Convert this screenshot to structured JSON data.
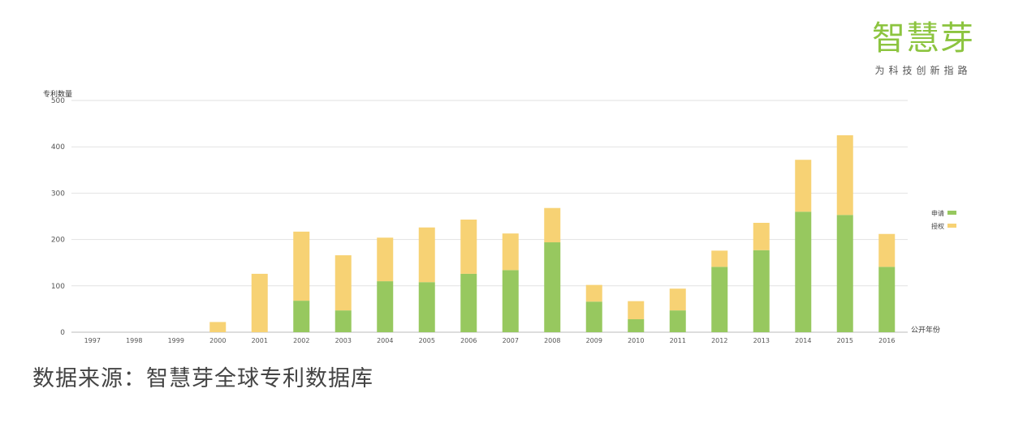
{
  "logo": {
    "name": "智慧芽",
    "tagline": "为科技创新指路"
  },
  "source_text": "数据来源：智慧芽全球专利数据库",
  "chart_data": {
    "type": "bar",
    "stacked": true,
    "ylabel": "专利数量",
    "xlabel": "公开年份",
    "ylim": [
      0,
      500
    ],
    "yticks": [
      0,
      100,
      200,
      300,
      400,
      500
    ],
    "grid": true,
    "legend_position": "right",
    "categories": [
      "1997",
      "1998",
      "1999",
      "2000",
      "2001",
      "2002",
      "2003",
      "2004",
      "2005",
      "2006",
      "2007",
      "2008",
      "2009",
      "2010",
      "2011",
      "2012",
      "2013",
      "2014",
      "2015",
      "2016"
    ],
    "series": [
      {
        "name": "申请",
        "color": "#97c85f",
        "values": [
          0,
          0,
          0,
          0,
          0,
          68,
          47,
          110,
          108,
          126,
          134,
          194,
          66,
          28,
          47,
          141,
          177,
          260,
          253,
          141
        ]
      },
      {
        "name": "授权",
        "color": "#f7d274",
        "values": [
          0,
          0,
          0,
          22,
          126,
          149,
          119,
          94,
          118,
          117,
          79,
          74,
          36,
          39,
          47,
          35,
          59,
          112,
          172,
          71
        ]
      }
    ]
  }
}
